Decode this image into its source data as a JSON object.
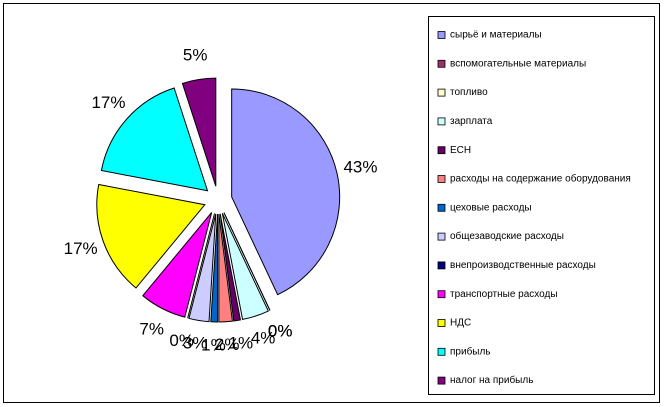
{
  "chart_data": {
    "type": "pie",
    "categories": [
      "сырьё и материалы",
      "вспомогательные материалы",
      "топливо",
      "зарплата",
      "ЕСН",
      "расходы на содержание оборудования",
      "цеховые расходы",
      "общезаводские расходы",
      "внепроизводственные расходы",
      "транспортные расходы",
      "НДС",
      "прибыль",
      "налог на прибыль"
    ],
    "values": [
      43,
      0,
      0,
      4,
      1,
      2,
      1,
      3,
      0,
      7,
      17,
      17,
      5
    ],
    "value_labels": [
      "43%",
      "0%",
      "0%",
      "4%",
      "1%",
      "2%",
      "1%",
      "3%",
      "0%",
      "7%",
      "17%",
      "17%",
      "5%"
    ],
    "colors": [
      "#9999ff",
      "#993366",
      "#ffffcc",
      "#ccffff",
      "#660066",
      "#ff8080",
      "#0066cc",
      "#ccccff",
      "#000080",
      "#ff00ff",
      "#ffff00",
      "#00ffff",
      "#800080"
    ],
    "legend": "right"
  }
}
